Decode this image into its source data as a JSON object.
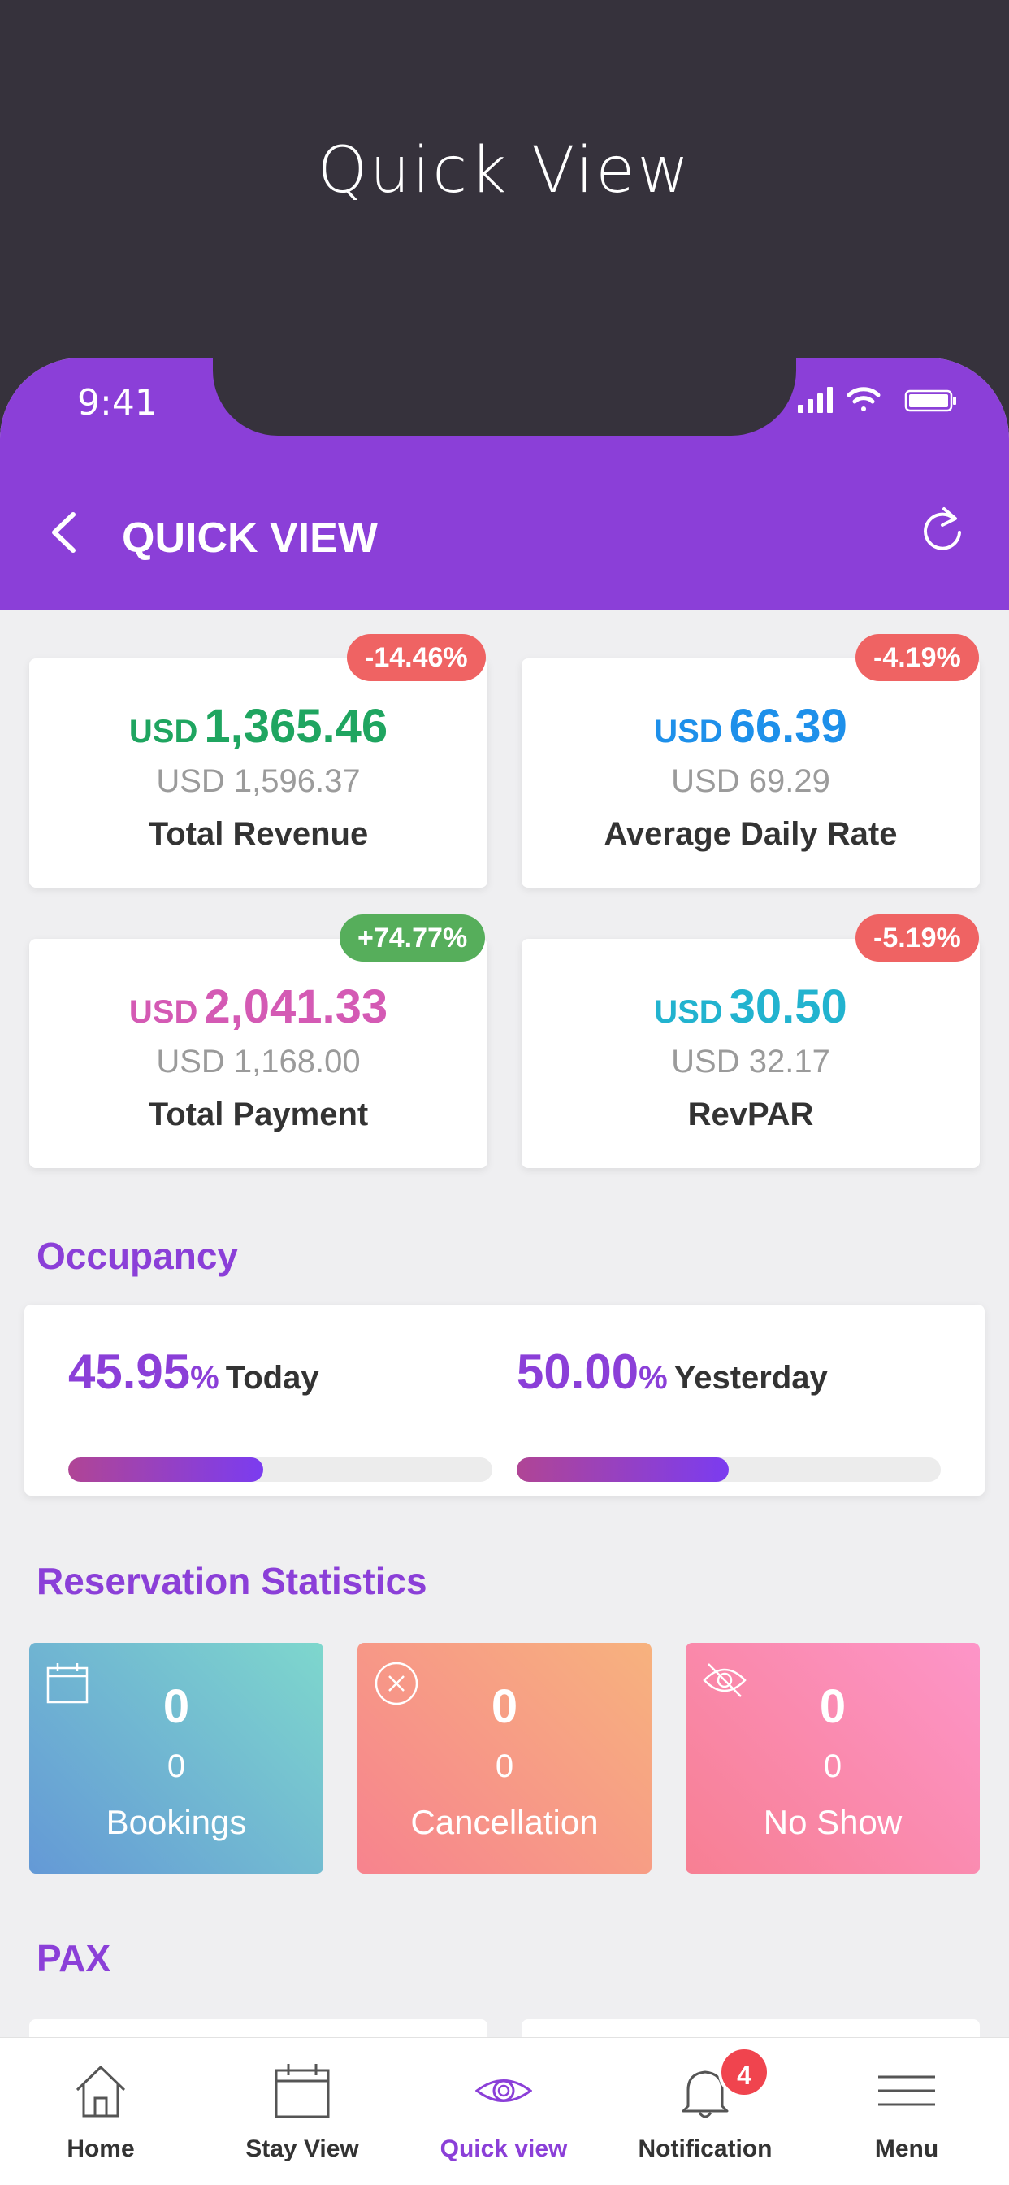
{
  "showcase_title": "Quick View",
  "status_bar": {
    "time": "9:41"
  },
  "header": {
    "title": "QUICK VIEW"
  },
  "metrics": [
    {
      "currency": "USD",
      "value": "1,365.46",
      "previous": "USD 1,596.37",
      "label": "Total Revenue",
      "change": "-14.46%",
      "value_color": "#1fa560",
      "badge_color": "#ef6363"
    },
    {
      "currency": "USD",
      "value": "66.39",
      "previous": "USD 69.29",
      "label": "Average Daily Rate",
      "change": "-4.19%",
      "value_color": "#1e90ea",
      "badge_color": "#ef6363"
    },
    {
      "currency": "USD",
      "value": "2,041.33",
      "previous": "USD 1,168.00",
      "label": "Total Payment",
      "change": "+74.77%",
      "value_color": "#d45ab4",
      "badge_color": "#56ae5b"
    },
    {
      "currency": "USD",
      "value": "30.50",
      "previous": "USD 32.17",
      "label": "RevPAR",
      "change": "-5.19%",
      "value_color": "#22b3cf",
      "badge_color": "#ef6363"
    }
  ],
  "occupancy": {
    "title": "Occupancy",
    "today": {
      "value": "45.95",
      "unit": "%",
      "label": "Today",
      "fraction": 0.4595
    },
    "yesterday": {
      "value": "50.00",
      "unit": "%",
      "label": "Yesterday",
      "fraction": 0.5
    }
  },
  "reservation": {
    "title": "Reservation Statistics",
    "cards": [
      {
        "count": "0",
        "sub": "0",
        "label": "Bookings",
        "icon": "calendar-icon"
      },
      {
        "count": "0",
        "sub": "0",
        "label": "Cancellation",
        "icon": "cancel-circle-icon"
      },
      {
        "count": "0",
        "sub": "0",
        "label": "No Show",
        "icon": "eye-off-icon"
      }
    ]
  },
  "pax": {
    "title": "PAX"
  },
  "tabs": [
    {
      "label": "Home",
      "icon": "home-icon"
    },
    {
      "label": "Stay View",
      "icon": "calendar-icon"
    },
    {
      "label": "Quick view",
      "icon": "eye-icon",
      "active": true
    },
    {
      "label": "Notification",
      "icon": "bell-icon",
      "badge": "4"
    },
    {
      "label": "Menu",
      "icon": "menu-icon"
    }
  ],
  "colors": {
    "accent": "#8b3fd8",
    "background": "#36323c"
  }
}
